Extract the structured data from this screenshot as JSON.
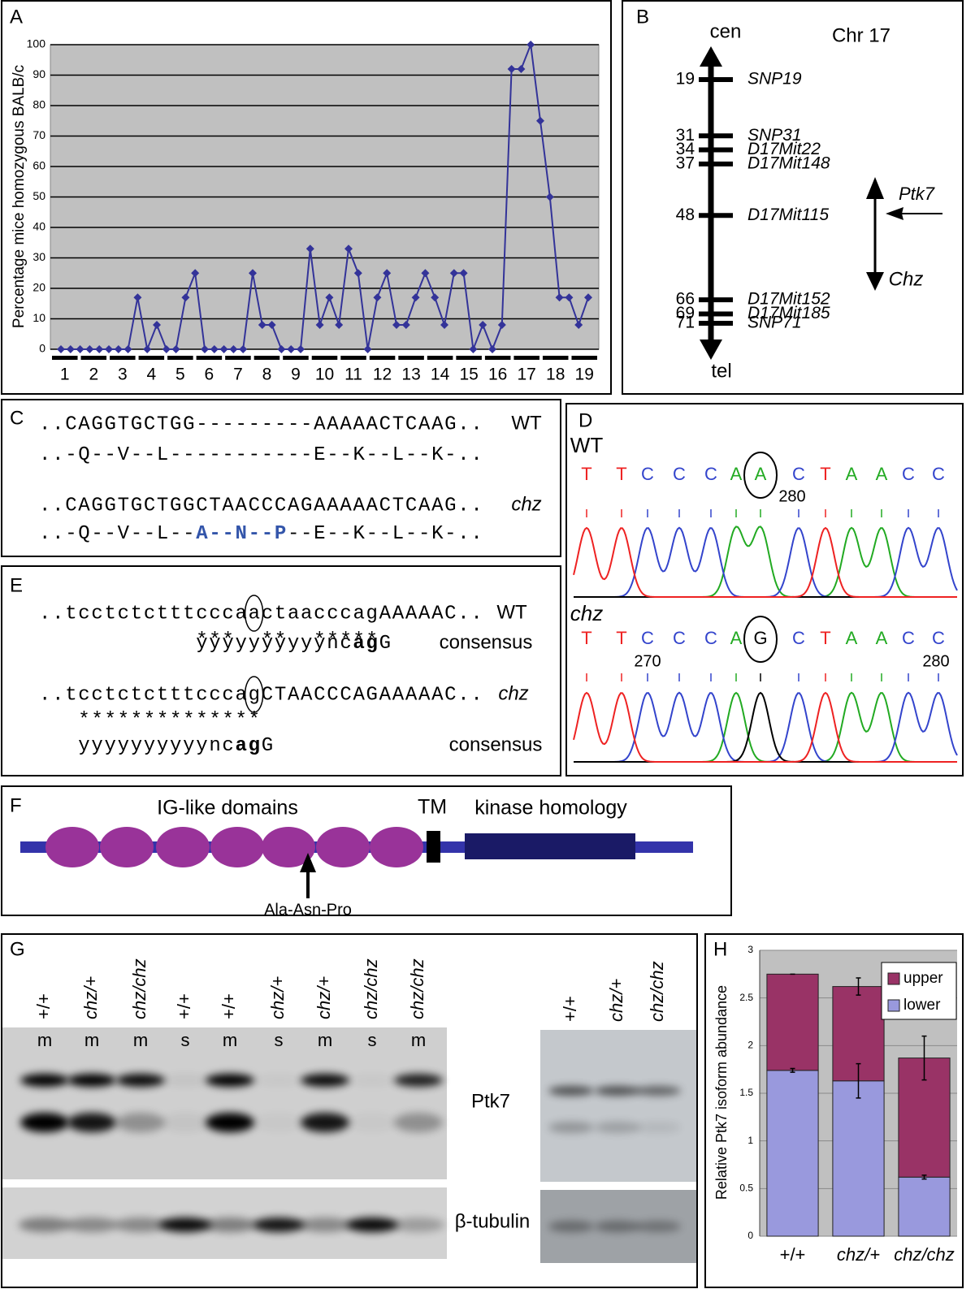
{
  "panel_labels": [
    "A",
    "B",
    "C",
    "D",
    "E",
    "F",
    "G",
    "H"
  ],
  "chart_data": [
    {
      "type": "line",
      "y_label": "Percentage mice homozygous BALB/c",
      "chromosomes": [
        "1",
        "2",
        "3",
        "4",
        "5",
        "6",
        "7",
        "8",
        "9",
        "10",
        "11",
        "12",
        "13",
        "14",
        "15",
        "16",
        "17",
        "18",
        "19"
      ],
      "values": [
        0,
        0,
        0,
        0,
        0,
        0,
        0,
        0,
        17,
        0,
        8,
        0,
        0,
        17,
        25,
        0,
        0,
        0,
        0,
        0,
        25,
        8,
        8,
        0,
        0,
        0,
        33,
        8,
        17,
        8,
        33,
        25,
        0,
        17,
        25,
        8,
        8,
        17,
        25,
        17,
        8,
        25,
        25,
        0,
        8,
        0,
        8,
        92,
        92,
        100,
        75,
        50,
        17,
        17,
        8,
        17
      ],
      "color": "#333399",
      "background": "#c0c0c0",
      "ylim": [
        0,
        100
      ],
      "yticks": [
        0,
        10,
        20,
        30,
        40,
        50,
        60,
        70,
        80,
        90,
        100
      ],
      "grid": true
    },
    {
      "type": "stacked-bar",
      "y_label": "Relative Ptk7 isoform abundance",
      "categories": [
        "+/+",
        "chz/+",
        "chz/chz"
      ],
      "series": [
        {
          "name": "lower",
          "color": "#9999dd",
          "values": [
            1.74,
            1.63,
            0.62
          ],
          "errors": [
            0.02,
            0.18,
            0.02
          ]
        },
        {
          "name": "upper",
          "color": "#993366",
          "values": [
            1.01,
            0.99,
            1.25
          ],
          "errors": [
            0,
            0.09,
            0.23
          ]
        }
      ],
      "background": "#c0c0c0",
      "ylim": [
        0,
        3
      ],
      "yticks": [
        0,
        0.5,
        1,
        1.5,
        2,
        2.5,
        3
      ],
      "grid": true,
      "legend": "top-right"
    }
  ],
  "chromosome_map": {
    "title": "Chr 17",
    "top": "cen",
    "bottom": "tel",
    "markers": [
      {
        "position": 19,
        "name": "SNP19"
      },
      {
        "position": 31,
        "name": "SNP31"
      },
      {
        "position": 34,
        "name": "D17Mit22"
      },
      {
        "position": 37,
        "name": "D17Mit148"
      },
      {
        "position": 48,
        "name": "D17Mit115"
      },
      {
        "position": 66,
        "name": "D17Mit152"
      },
      {
        "position": 69,
        "name": "D17Mit185"
      },
      {
        "position": 71,
        "name": "SNP71"
      }
    ],
    "gene": "Ptk7",
    "mutant": "Chz"
  },
  "sequence_alignment": {
    "rows": [
      {
        "seq": "..CAGGTGCTGG---------AAAAACTCAAG..",
        "protein": [
          "..-Q--V--L-----------E--K--L--K-.."
        ],
        "label": "WT"
      },
      {
        "seq": "..CAGGTGCTGGCTAACCCAGAAAAACTCAAG..",
        "protein": [
          "..-Q--V--L--",
          "A--N--P",
          "--E--K--L--K-.."
        ],
        "label": "chz"
      }
    ]
  },
  "chromatogram": {
    "base_colors": {
      "A": "#22aa22",
      "C": "#3344cc",
      "G": "#000000",
      "T": "#ee2222"
    },
    "traces": [
      {
        "label": "WT",
        "bases": [
          "T",
          "T",
          "C",
          "C",
          "C",
          "A",
          "A",
          "C",
          "T",
          "A",
          "A",
          "C",
          "C"
        ],
        "numbers": [
          "280"
        ]
      },
      {
        "label": "chz",
        "bases": [
          "T",
          "T",
          "C",
          "C",
          "C",
          "A",
          "G",
          "C",
          "T",
          "A",
          "A",
          "C",
          "C"
        ],
        "numbers": [
          "270",
          "280"
        ]
      }
    ]
  },
  "splice_site": {
    "rows": [
      {
        "seq": "..tcctctctttcccaactaacccagAAAAAC..",
        "label": "WT",
        "stars": "***  **  *****",
        "consensus": [
          "yyyyyyyyyync",
          "ag",
          "G"
        ],
        "consensus_label": "consensus"
      },
      {
        "seq": "..tcctctctttcccagCTAACCCAGAAAAAC..",
        "label": "chz",
        "stars": "**************",
        "consensus": [
          "yyyyyyyyyync",
          "ag",
          "G"
        ],
        "consensus_label": "consensus"
      }
    ]
  },
  "domains": {
    "ig": "IG-like domains",
    "tm": "TM",
    "kinase": "kinase homology",
    "insertion": "Ala-Asn-Pro"
  },
  "blot": {
    "lanes": [
      "+/+",
      "chz/+",
      "chz/chz",
      "+/+",
      "+/+",
      "chz/+",
      "chz/+",
      "chz/chz",
      "chz/chz"
    ],
    "fractions": [
      "m",
      "m",
      "m",
      "s",
      "m",
      "s",
      "m",
      "s",
      "m"
    ],
    "lanes_right": [
      "+/+",
      "chz/+",
      "chz/chz"
    ],
    "protein": "Ptk7",
    "control": "β-tubulin"
  }
}
